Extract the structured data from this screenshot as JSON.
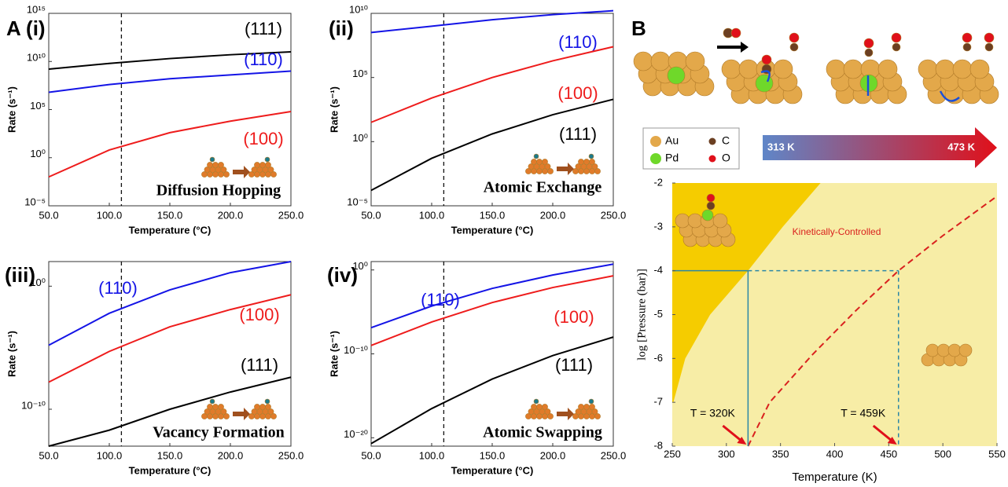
{
  "chart_data": [
    {
      "type": "line",
      "label": "A (i)",
      "annotation": "Diffusion Hopping",
      "x_label": "Temperature (°C)",
      "y_label": "Rate (s⁻¹)",
      "log_y": true,
      "x": [
        50,
        100,
        150,
        200,
        250
      ],
      "xlim": [
        50,
        250
      ],
      "xticks": [
        {
          "value": 50,
          "label": "50.0"
        },
        {
          "value": 100,
          "label": "100.0"
        },
        {
          "value": 150,
          "label": "150.0"
        },
        {
          "value": 200,
          "label": "200.0"
        },
        {
          "value": 250,
          "label": "250.0"
        }
      ],
      "ylim": [
        1e-05,
        1000000000000000.0
      ],
      "yticks": [
        {
          "value": 1e-05,
          "label": "10⁻⁵"
        },
        {
          "value": 1,
          "label": "10⁰"
        },
        {
          "value": 100000.0,
          "label": "10⁵"
        },
        {
          "value": 10000000000.0,
          "label": "10¹⁰"
        },
        {
          "value": 1000000000000000.0,
          "label": "10¹⁵"
        }
      ],
      "marker_x": 110,
      "series": [
        {
          "name": "(111)",
          "color": "#000000",
          "values": [
            1600000000.0,
            6300000000.0,
            20000000000.0,
            50000000000.0,
            100000000000.0
          ]
        },
        {
          "name": "(110)",
          "color": "#1414e6",
          "values": [
            6300000.0,
            40000000.0,
            160000000.0,
            400000000.0,
            1000000000.0
          ]
        },
        {
          "name": "(100)",
          "color": "#ee1c1c",
          "values": [
            0.01,
            6.3,
            400,
            6300,
            63000
          ]
        }
      ]
    },
    {
      "type": "line",
      "label": "(ii)",
      "annotation": "Atomic Exchange",
      "x_label": "Temperature (°C)",
      "y_label": "Rate (s⁻¹)",
      "log_y": true,
      "x": [
        50,
        100,
        150,
        200,
        250
      ],
      "xlim": [
        50,
        250
      ],
      "xticks": [
        {
          "value": 50,
          "label": "50.0"
        },
        {
          "value": 100,
          "label": "100.0"
        },
        {
          "value": 150,
          "label": "150.0"
        },
        {
          "value": 200,
          "label": "200.0"
        },
        {
          "value": 250,
          "label": "250.0"
        }
      ],
      "ylim": [
        1e-05,
        10000000000.0
      ],
      "yticks": [
        {
          "value": 1e-05,
          "label": "10⁻⁵"
        },
        {
          "value": 1,
          "label": "10⁰"
        },
        {
          "value": 100000.0,
          "label": "10⁵"
        },
        {
          "value": 10000000000.0,
          "label": "10¹⁰"
        }
      ],
      "marker_x": 110,
      "series": [
        {
          "name": "(110)",
          "color": "#1414e6",
          "values": [
            320000000.0,
            1000000000.0,
            3200000000.0,
            8000000000.0,
            16000000000.0
          ]
        },
        {
          "name": "(100)",
          "color": "#ee1c1c",
          "values": [
            32,
            2500,
            100000.0,
            2000000.0,
            25000000.0
          ]
        },
        {
          "name": "(111)",
          "color": "#000000",
          "values": [
            0.00016,
            0.05,
            4,
            125,
            2000
          ]
        }
      ]
    },
    {
      "type": "line",
      "label": "(iii)",
      "annotation": "Vacancy Formation",
      "x_label": "Temperature (°C)",
      "y_label": "Rate (s⁻¹)",
      "log_y": true,
      "x": [
        50,
        100,
        150,
        200,
        250
      ],
      "xlim": [
        50,
        250
      ],
      "xticks": [
        {
          "value": 50,
          "label": "50.0"
        },
        {
          "value": 100,
          "label": "100.0"
        },
        {
          "value": 150,
          "label": "150.0"
        },
        {
          "value": 200,
          "label": "200.0"
        },
        {
          "value": 250,
          "label": "250.0"
        }
      ],
      "ylim": [
        1e-13,
        100
      ],
      "yticks": [
        {
          "value": 1e-10,
          "label": "10⁻¹⁰"
        },
        {
          "value": 1,
          "label": "10⁰"
        }
      ],
      "marker_x": 110,
      "series": [
        {
          "name": "(110)",
          "color": "#1414e6",
          "values": [
            1.6e-05,
            0.0063,
            0.5,
            12.6,
            100
          ]
        },
        {
          "name": "(100)",
          "color": "#ee1c1c",
          "values": [
            1.6e-08,
            5e-06,
            0.0005,
            0.0126,
            0.2
          ]
        },
        {
          "name": "(111)",
          "color": "#000000",
          "values": [
            1e-13,
            2e-12,
            1e-10,
            2.5e-09,
            4e-08
          ]
        }
      ]
    },
    {
      "type": "line",
      "label": "(iv)",
      "annotation": "Atomic Swapping",
      "x_label": "Temperature (°C)",
      "y_label": "Rate (s⁻¹)",
      "log_y": true,
      "x": [
        50,
        100,
        150,
        200,
        250
      ],
      "xlim": [
        50,
        250
      ],
      "xticks": [
        {
          "value": 50,
          "label": "50.0"
        },
        {
          "value": 100,
          "label": "100.0"
        },
        {
          "value": 150,
          "label": "150.0"
        },
        {
          "value": 200,
          "label": "200.0"
        },
        {
          "value": 250,
          "label": "250.0"
        }
      ],
      "ylim": [
        1e-21,
        10
      ],
      "yticks": [
        {
          "value": 1e-20,
          "label": "10⁻²⁰"
        },
        {
          "value": 1e-10,
          "label": "10⁻¹⁰"
        },
        {
          "value": 1,
          "label": "10⁰"
        }
      ],
      "marker_x": 110,
      "series": [
        {
          "name": "(110)",
          "color": "#1414e6",
          "values": [
            1.3e-07,
            5e-05,
            0.0063,
            0.25,
            5
          ]
        },
        {
          "name": "(100)",
          "color": "#ee1c1c",
          "values": [
            1e-09,
            6.3e-07,
            0.00013,
            0.008,
            0.2
          ]
        },
        {
          "name": "(111)",
          "color": "#000000",
          "values": [
            2e-21,
            3e-17,
            1e-13,
            6.3e-11,
            1e-08
          ]
        }
      ]
    },
    {
      "type": "phase",
      "label": "B",
      "x_label": "Temperature (K)",
      "y_label": "log [Pressure (bar)]",
      "xlim": [
        250,
        550
      ],
      "xticks": [
        250,
        300,
        350,
        400,
        450,
        500,
        550
      ],
      "ylim": [
        -8,
        -2
      ],
      "yticks": [
        -2,
        -3,
        -4,
        -5,
        -6,
        -7,
        -8
      ],
      "background": "#f7eda6",
      "boundary": {
        "color": "#f5cc00",
        "x": [
          251,
          262,
          285,
          320,
          352,
          387
        ],
        "y": [
          -7,
          -6,
          -5,
          -4,
          -3,
          -2
        ]
      },
      "kinetic": {
        "name": "Kinetically-Controlled",
        "color": "#d9211e",
        "x": [
          320,
          340,
          380,
          420,
          459,
          500,
          550
        ],
        "y": [
          -8,
          -7,
          -5.9,
          -4.9,
          -4,
          -3.2,
          -2.3
        ]
      },
      "guides": {
        "color": "#2a86a6",
        "y": -4,
        "x": [
          320,
          459
        ],
        "labels": [
          "T = 320K",
          "T = 459K"
        ]
      },
      "species": [
        {
          "name": "Au",
          "color": "#e3a84a"
        },
        {
          "name": "C",
          "color": "#6b3f22"
        },
        {
          "name": "Pd",
          "color": "#6fd82a"
        },
        {
          "name": "O",
          "color": "#e0101a"
        }
      ],
      "temperature_bar": {
        "labels": [
          "313 K",
          "473 K"
        ],
        "colors": [
          "#5f86c8",
          "#e0101a"
        ]
      }
    }
  ]
}
